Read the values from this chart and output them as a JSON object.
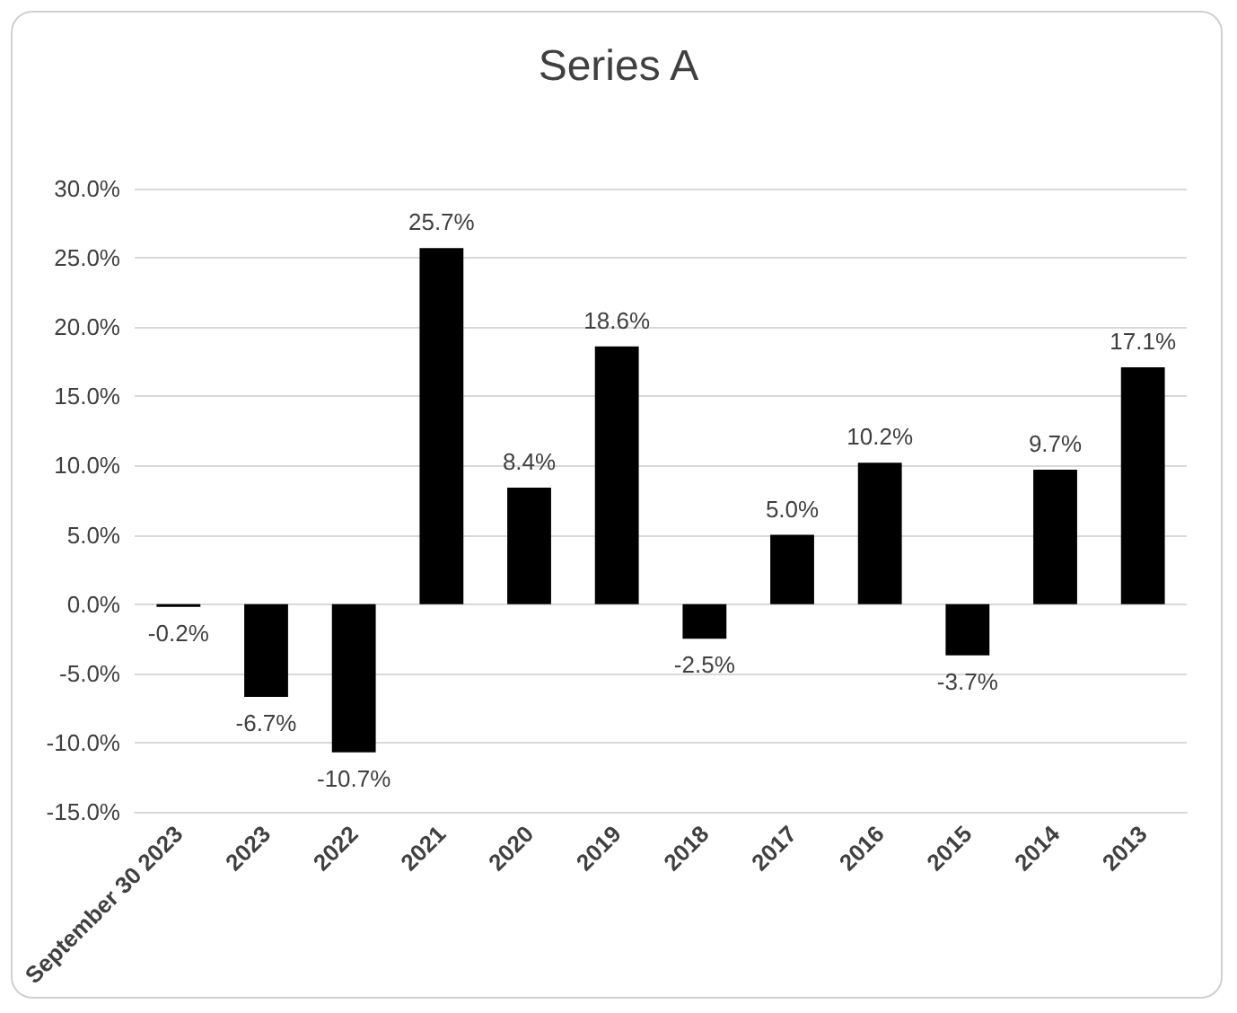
{
  "chart_data": {
    "type": "bar",
    "title": "Series A",
    "categories": [
      "September 30 2023",
      "2023",
      "2022",
      "2021",
      "2020",
      "2019",
      "2018",
      "2017",
      "2016",
      "2015",
      "2014",
      "2013"
    ],
    "values": [
      -0.2,
      -6.7,
      -10.7,
      25.7,
      8.4,
      18.6,
      -2.5,
      5.0,
      10.2,
      -3.7,
      9.7,
      17.1
    ],
    "value_labels": [
      "-0.2%",
      "-6.7%",
      "-10.7%",
      "25.7%",
      "8.4%",
      "18.6%",
      "-2.5%",
      "5.0%",
      "10.2%",
      "-3.7%",
      "9.7%",
      "17.1%"
    ],
    "color": "#000000",
    "ylim": [
      -15,
      30
    ],
    "yticks": [
      {
        "value": -15,
        "label": "-15.0%"
      },
      {
        "value": -10,
        "label": "-10.0%"
      },
      {
        "value": -5,
        "label": "-5.0%"
      },
      {
        "value": 0,
        "label": "0.0%"
      },
      {
        "value": 5,
        "label": "5.0%"
      },
      {
        "value": 10,
        "label": "10.0%"
      },
      {
        "value": 15,
        "label": "15.0%"
      },
      {
        "value": 20,
        "label": "20.0%"
      },
      {
        "value": 25,
        "label": "25.0%"
      },
      {
        "value": 30,
        "label": "30.0%"
      }
    ],
    "grid": "y"
  }
}
